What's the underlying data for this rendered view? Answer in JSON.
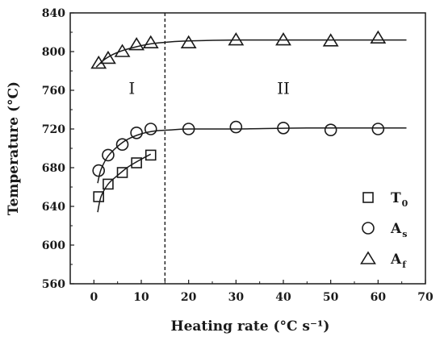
{
  "chart_data": {
    "type": "scatter",
    "title": "",
    "xlabel": "Heating rate (°C s⁻¹)",
    "ylabel": "Temperature (°C)",
    "xlim": [
      -5,
      70
    ],
    "ylim": [
      560,
      840
    ],
    "xticks": [
      0,
      10,
      20,
      30,
      40,
      50,
      60,
      70
    ],
    "yticks": [
      560,
      600,
      640,
      680,
      720,
      760,
      800,
      840
    ],
    "grid": false,
    "legend_position": "bottom-right",
    "divider_x": 15,
    "regions": [
      {
        "label": "I",
        "x": 8,
        "y": 762
      },
      {
        "label": "II",
        "x": 40,
        "y": 762
      }
    ],
    "series": [
      {
        "name": "T0",
        "legend_main": "T",
        "legend_sub": "0",
        "marker": "square",
        "x": [
          1,
          3,
          6,
          9,
          12
        ],
        "y": [
          650,
          663,
          675,
          685,
          693
        ]
      },
      {
        "name": "As",
        "legend_main": "A",
        "legend_sub": "s",
        "marker": "circle",
        "x": [
          1,
          3,
          6,
          9,
          12,
          20,
          30,
          40,
          50,
          60
        ],
        "y": [
          677,
          693,
          704,
          716,
          720,
          720,
          722,
          721,
          719,
          720
        ]
      },
      {
        "name": "Af",
        "legend_main": "A",
        "legend_sub": "f",
        "marker": "triangle",
        "x": [
          1,
          3,
          6,
          9,
          12,
          20,
          30,
          40,
          50,
          60
        ],
        "y": [
          788,
          793,
          800,
          807,
          809,
          809,
          812,
          812,
          811,
          814
        ]
      }
    ],
    "fit_curves": [
      {
        "series": "T0",
        "x": [
          0.8,
          1.5,
          3,
          5,
          7,
          9,
          12
        ],
        "y": [
          634,
          650,
          663,
          672,
          680,
          686,
          694
        ]
      },
      {
        "series": "As",
        "x": [
          0.8,
          1.5,
          3,
          5,
          7,
          10,
          13,
          16,
          20,
          30,
          45,
          66
        ],
        "y": [
          664,
          678,
          692,
          702,
          709,
          715,
          718,
          719,
          720,
          720,
          721,
          721
        ]
      },
      {
        "series": "Af",
        "x": [
          0.5,
          2,
          4,
          6,
          9,
          12,
          16,
          20,
          30,
          45,
          66
        ],
        "y": [
          784,
          791,
          797,
          801,
          805,
          808,
          810,
          811,
          812,
          812,
          812
        ]
      }
    ]
  }
}
